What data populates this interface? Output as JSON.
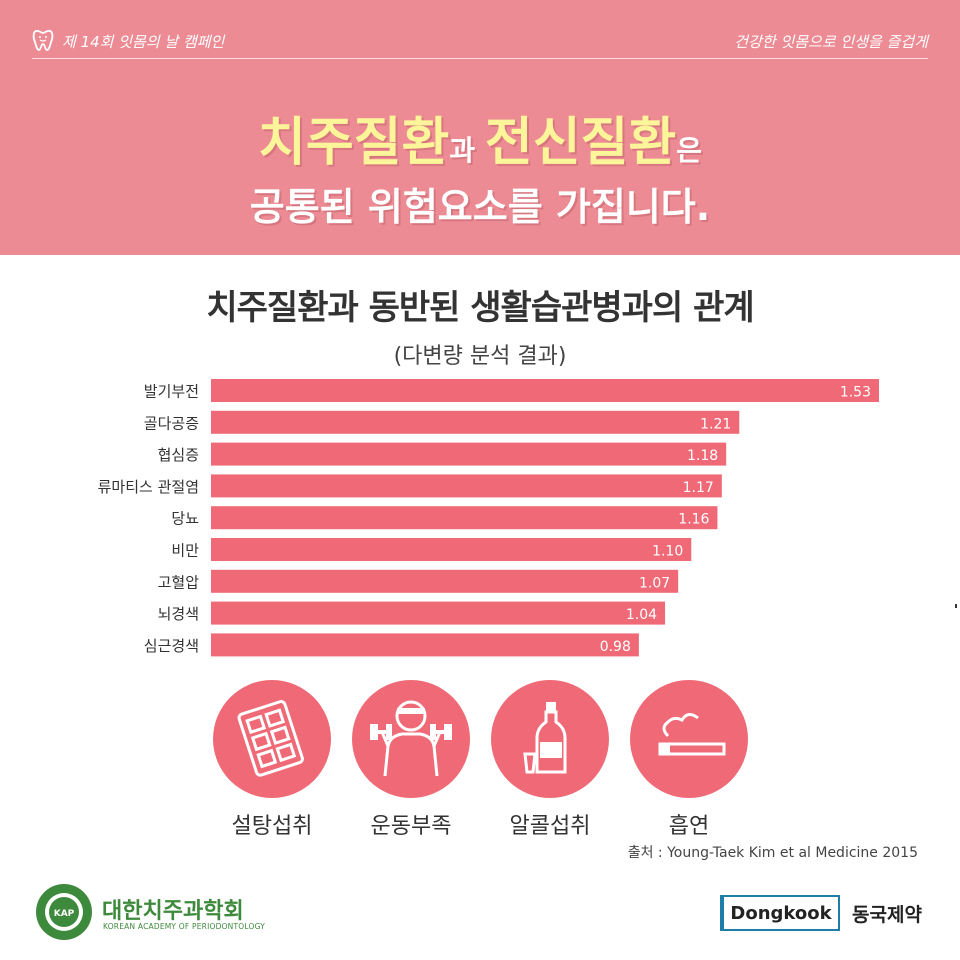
{
  "header": {
    "campaign": "제 14회 잇몸의 날 캠페인",
    "slogan": "건강한 잇몸으로 인생을 즐겁게"
  },
  "headline": {
    "part1": "치주질환",
    "part2": "과 ",
    "part3": "전신질환",
    "part4": "은",
    "line2": "공통된 위험요소를 가집니다."
  },
  "chart_data": {
    "type": "bar",
    "orientation": "horizontal",
    "title": "치주질환과 동반된 생활습관병과의 관계",
    "subtitle": "(다변량 분석 결과)",
    "categories": [
      "발기부전",
      "골다공증",
      "협심증",
      "류마티스 관절염",
      "당뇨",
      "비만",
      "고혈압",
      "뇌경색",
      "심근경색"
    ],
    "values": [
      1.53,
      1.21,
      1.18,
      1.17,
      1.16,
      1.1,
      1.07,
      1.04,
      0.98
    ],
    "value_labels": [
      "1.53",
      "1.21",
      "1.18",
      "1.17",
      "1.16",
      "1.10",
      "1.07",
      "1.04",
      "0.98"
    ],
    "grid": false,
    "bar_color": "#ef6a76"
  },
  "risk_factors": [
    {
      "label": "설탕섭취",
      "icon": "sugar-cubes-icon"
    },
    {
      "label": "운동부족",
      "icon": "dumbbell-exercise-icon"
    },
    {
      "label": "알콜섭취",
      "icon": "alcohol-bottle-icon"
    },
    {
      "label": "흡연",
      "icon": "cigarette-icon"
    }
  ],
  "source": "출처 : Young-Taek Kim et al Medicine 2015",
  "footer": {
    "kap_name": "대한치주과학회",
    "kap_english": "KOREAN ACADEMY OF PERIODONTOLOGY",
    "kap_badge": "KAP",
    "dongkook_en": "Dongkook",
    "dongkook_kr": "동국제약"
  },
  "colors": {
    "banner": "#ec8b94",
    "bar": "#ef6a76",
    "highlight": "#fdf59a",
    "kap_green": "#3e8a3c",
    "dongkook_blue": "#1e7ea8"
  }
}
